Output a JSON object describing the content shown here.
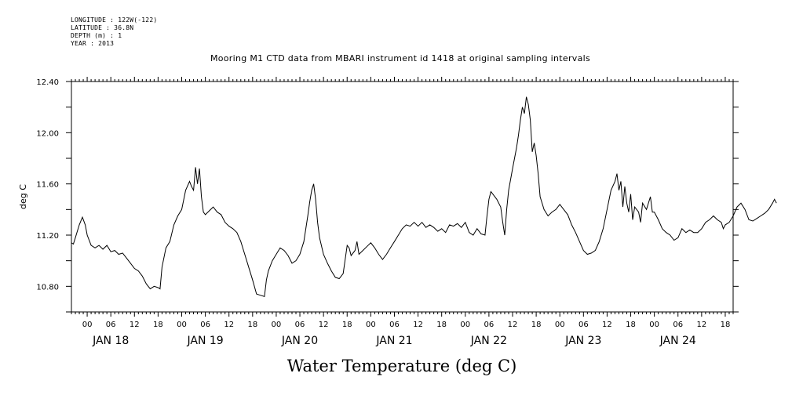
{
  "header": {
    "lines": [
      "LONGITUDE : 122W(-122)",
      "LATITUDE : 36.8N",
      "DEPTH (m) : 1",
      "YEAR : 2013"
    ],
    "title": "Mooring M1 CTD data from MBARI instrument id 1418 at original sampling intervals"
  },
  "chart_data": {
    "type": "line",
    "title": "Mooring M1 CTD data from MBARI instrument id 1418 at original sampling intervals",
    "xlabel": "Water Temperature (deg C)",
    "ylabel": "deg C",
    "ylim": [
      10.6,
      12.4
    ],
    "yticks": [
      "10.80",
      "11.20",
      "11.60",
      "12.00",
      "12.40"
    ],
    "xlim_hours": [
      -4,
      164
    ],
    "hour_ticks": [
      "00",
      "06",
      "12",
      "18",
      "00",
      "06",
      "12",
      "18",
      "00",
      "06",
      "12",
      "18",
      "00",
      "06",
      "12",
      "18",
      "00",
      "06",
      "12",
      "18",
      "00",
      "06",
      "12",
      "18",
      "00",
      "06",
      "12",
      "18"
    ],
    "date_labels": [
      "JAN 18",
      "JAN 19",
      "JAN 20",
      "JAN 21",
      "JAN 22",
      "JAN 23",
      "JAN 24"
    ],
    "grid": false,
    "series": [
      {
        "points": [
          [
            -4,
            11.14
          ],
          [
            -3.5,
            11.13
          ],
          [
            -3,
            11.18
          ],
          [
            -2,
            11.28
          ],
          [
            -1.2,
            11.34
          ],
          [
            -0.5,
            11.28
          ],
          [
            0,
            11.2
          ],
          [
            1,
            11.12
          ],
          [
            2,
            11.1
          ],
          [
            3,
            11.12
          ],
          [
            4,
            11.09
          ],
          [
            5,
            11.12
          ],
          [
            6,
            11.07
          ],
          [
            7,
            11.08
          ],
          [
            8,
            11.05
          ],
          [
            9,
            11.06
          ],
          [
            10,
            11.02
          ],
          [
            11,
            10.98
          ],
          [
            12,
            10.94
          ],
          [
            13,
            10.92
          ],
          [
            14,
            10.88
          ],
          [
            15,
            10.82
          ],
          [
            16,
            10.78
          ],
          [
            17,
            10.8
          ],
          [
            18,
            10.79
          ],
          [
            18.5,
            10.78
          ],
          [
            19,
            10.95
          ],
          [
            20,
            11.1
          ],
          [
            21,
            11.15
          ],
          [
            22,
            11.28
          ],
          [
            23,
            11.35
          ],
          [
            24,
            11.4
          ],
          [
            25,
            11.55
          ],
          [
            26,
            11.62
          ],
          [
            26.5,
            11.58
          ],
          [
            27,
            11.55
          ],
          [
            27.5,
            11.73
          ],
          [
            28,
            11.6
          ],
          [
            28.5,
            11.72
          ],
          [
            29,
            11.5
          ],
          [
            29.5,
            11.38
          ],
          [
            30,
            11.36
          ],
          [
            31,
            11.39
          ],
          [
            32,
            11.42
          ],
          [
            33,
            11.38
          ],
          [
            34,
            11.36
          ],
          [
            35,
            11.3
          ],
          [
            36,
            11.27
          ],
          [
            37,
            11.25
          ],
          [
            38,
            11.22
          ],
          [
            39,
            11.15
          ],
          [
            40,
            11.05
          ],
          [
            41,
            10.95
          ],
          [
            42,
            10.85
          ],
          [
            43,
            10.74
          ],
          [
            44,
            10.73
          ],
          [
            45,
            10.72
          ],
          [
            45.5,
            10.85
          ],
          [
            46,
            10.92
          ],
          [
            47,
            11.0
          ],
          [
            48,
            11.05
          ],
          [
            49,
            11.1
          ],
          [
            50,
            11.08
          ],
          [
            51,
            11.04
          ],
          [
            52,
            10.98
          ],
          [
            53,
            11.0
          ],
          [
            54,
            11.05
          ],
          [
            55,
            11.15
          ],
          [
            56,
            11.35
          ],
          [
            56.5,
            11.46
          ],
          [
            57,
            11.55
          ],
          [
            57.5,
            11.6
          ],
          [
            58,
            11.48
          ],
          [
            58.5,
            11.3
          ],
          [
            59,
            11.18
          ],
          [
            60,
            11.05
          ],
          [
            61,
            10.98
          ],
          [
            62,
            10.92
          ],
          [
            63,
            10.87
          ],
          [
            64,
            10.86
          ],
          [
            65,
            10.9
          ],
          [
            66,
            11.12
          ],
          [
            66.5,
            11.1
          ],
          [
            67,
            11.04
          ],
          [
            68,
            11.08
          ],
          [
            68.5,
            11.15
          ],
          [
            69,
            11.05
          ],
          [
            70,
            11.08
          ],
          [
            71,
            11.11
          ],
          [
            72,
            11.14
          ],
          [
            73,
            11.1
          ],
          [
            74,
            11.05
          ],
          [
            75,
            11.01
          ],
          [
            76,
            11.05
          ],
          [
            77,
            11.1
          ],
          [
            78,
            11.15
          ],
          [
            79,
            11.2
          ],
          [
            80,
            11.25
          ],
          [
            81,
            11.28
          ],
          [
            82,
            11.27
          ],
          [
            83,
            11.3
          ],
          [
            84,
            11.27
          ],
          [
            85,
            11.3
          ],
          [
            86,
            11.26
          ],
          [
            87,
            11.28
          ],
          [
            88,
            11.26
          ],
          [
            89,
            11.23
          ],
          [
            90,
            11.25
          ],
          [
            91,
            11.22
          ],
          [
            92,
            11.28
          ],
          [
            93,
            11.27
          ],
          [
            94,
            11.29
          ],
          [
            95,
            11.26
          ],
          [
            96,
            11.3
          ],
          [
            97,
            11.22
          ],
          [
            98,
            11.2
          ],
          [
            99,
            11.25
          ],
          [
            100,
            11.21
          ],
          [
            101,
            11.2
          ],
          [
            101.5,
            11.35
          ],
          [
            102,
            11.48
          ],
          [
            102.5,
            11.54
          ],
          [
            103,
            11.52
          ],
          [
            104,
            11.48
          ],
          [
            105,
            11.42
          ],
          [
            105.5,
            11.3
          ],
          [
            106,
            11.2
          ],
          [
            106.5,
            11.4
          ],
          [
            107,
            11.55
          ],
          [
            108,
            11.72
          ],
          [
            109,
            11.88
          ],
          [
            109.5,
            11.98
          ],
          [
            110,
            12.1
          ],
          [
            110.5,
            12.2
          ],
          [
            111,
            12.15
          ],
          [
            111.5,
            12.28
          ],
          [
            112,
            12.22
          ],
          [
            112.5,
            12.1
          ],
          [
            113,
            11.85
          ],
          [
            113.5,
            11.92
          ],
          [
            114,
            11.82
          ],
          [
            114.5,
            11.68
          ],
          [
            115,
            11.5
          ],
          [
            116,
            11.4
          ],
          [
            117,
            11.35
          ],
          [
            118,
            11.38
          ],
          [
            119,
            11.4
          ],
          [
            120,
            11.44
          ],
          [
            121,
            11.4
          ],
          [
            122,
            11.36
          ],
          [
            123,
            11.28
          ],
          [
            124,
            11.22
          ],
          [
            125,
            11.15
          ],
          [
            126,
            11.08
          ],
          [
            127,
            11.05
          ],
          [
            128,
            11.06
          ],
          [
            129,
            11.08
          ],
          [
            130,
            11.15
          ],
          [
            131,
            11.25
          ],
          [
            132,
            11.4
          ],
          [
            133,
            11.55
          ],
          [
            134,
            11.62
          ],
          [
            134.5,
            11.68
          ],
          [
            135,
            11.55
          ],
          [
            135.5,
            11.62
          ],
          [
            136,
            11.42
          ],
          [
            136.5,
            11.58
          ],
          [
            137,
            11.45
          ],
          [
            137.5,
            11.38
          ],
          [
            138,
            11.52
          ],
          [
            138.5,
            11.32
          ],
          [
            139,
            11.42
          ],
          [
            140,
            11.38
          ],
          [
            140.5,
            11.3
          ],
          [
            141,
            11.45
          ],
          [
            142,
            11.4
          ],
          [
            143,
            11.5
          ],
          [
            143.5,
            11.38
          ],
          [
            144,
            11.38
          ],
          [
            145,
            11.32
          ],
          [
            146,
            11.25
          ],
          [
            147,
            11.22
          ],
          [
            148,
            11.2
          ],
          [
            149,
            11.16
          ],
          [
            150,
            11.18
          ],
          [
            151,
            11.25
          ],
          [
            152,
            11.22
          ],
          [
            153,
            11.24
          ],
          [
            154,
            11.22
          ],
          [
            155,
            11.22
          ],
          [
            156,
            11.25
          ],
          [
            157,
            11.3
          ],
          [
            158,
            11.32
          ],
          [
            159,
            11.35
          ],
          [
            160,
            11.32
          ],
          [
            161,
            11.3
          ],
          [
            161.5,
            11.25
          ],
          [
            162,
            11.28
          ],
          [
            163,
            11.3
          ],
          [
            164,
            11.35
          ],
          [
            165,
            11.42
          ],
          [
            166,
            11.45
          ],
          [
            167,
            11.4
          ],
          [
            168,
            11.32
          ],
          [
            169,
            11.31
          ],
          [
            170,
            11.33
          ],
          [
            171,
            11.35
          ],
          [
            172,
            11.37
          ],
          [
            173,
            11.4
          ],
          [
            174,
            11.45
          ],
          [
            174.5,
            11.48
          ],
          [
            175,
            11.45
          ]
        ]
      }
    ]
  }
}
